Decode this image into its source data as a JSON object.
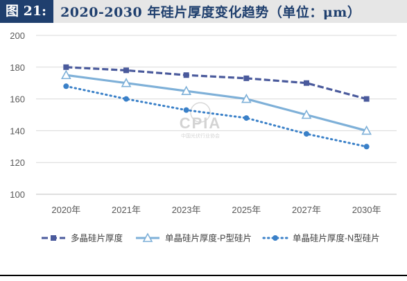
{
  "figure": {
    "number": "图 21:",
    "title": "2020-2030 年硅片厚度变化趋势（单位：μm）"
  },
  "watermark": {
    "text": "CPIA",
    "subtext": "中国光伏行业协会"
  },
  "colors": {
    "title_bg": "#1f3f6e",
    "series_1": "#4a5a9c",
    "series_2": "#7eb0d8",
    "series_3": "#3a80c8"
  },
  "chart_data": {
    "type": "line",
    "title": "",
    "xlabel": "",
    "ylabel": "",
    "categories": [
      "2020年",
      "2021年",
      "2023年",
      "2025年",
      "2027年",
      "2030年"
    ],
    "ylim": [
      100,
      200
    ],
    "yticks": [
      100,
      120,
      140,
      160,
      180,
      200
    ],
    "grid": "horizontal",
    "legend_position": "bottom",
    "series": [
      {
        "name": "多晶硅片厚度",
        "values": [
          180,
          178,
          175,
          173,
          170,
          160
        ],
        "color": "#4a5a9c",
        "marker": "square",
        "line": "dashed"
      },
      {
        "name": "单晶硅片厚度-P型硅片",
        "values": [
          175,
          170,
          165,
          160,
          150,
          140
        ],
        "color": "#7eb0d8",
        "marker": "triangle",
        "line": "solid"
      },
      {
        "name": "单晶硅片厚度-N型硅片",
        "values": [
          168,
          160,
          153,
          148,
          138,
          130
        ],
        "color": "#3a80c8",
        "marker": "circle",
        "line": "dotted"
      }
    ]
  }
}
